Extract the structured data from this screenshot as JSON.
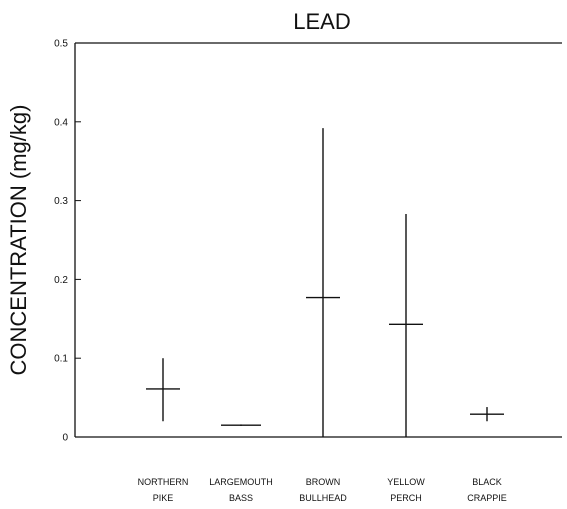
{
  "chart_data": {
    "type": "range",
    "title": "LEAD",
    "ylabel": "CONCENTRATION (mg/kg)",
    "xlabel": "",
    "ylim": [
      0,
      0.5
    ],
    "yticks": [
      0,
      0.1,
      0.2,
      0.3,
      0.4,
      0.5
    ],
    "ytick_labels": [
      "0",
      "0.1",
      "0.2",
      "0.3",
      "0.4",
      "0.5"
    ],
    "grid": false,
    "categories": [
      [
        "NORTHERN",
        "PIKE"
      ],
      [
        "LARGEMOUTH",
        "BASS"
      ],
      [
        "BROWN",
        "BULLHEAD"
      ],
      [
        "YELLOW",
        "PERCH"
      ],
      [
        "BLACK",
        "CRAPPIE"
      ]
    ],
    "series": [
      {
        "min": 0.02,
        "max": 0.1,
        "mean": 0.061
      },
      {
        "min": 0.014,
        "max": 0.016,
        "mean": 0.015
      },
      {
        "min": 0.0,
        "max": 0.392,
        "mean": 0.177
      },
      {
        "min": 0.0,
        "max": 0.283,
        "mean": 0.143
      },
      {
        "min": 0.02,
        "max": 0.038,
        "mean": 0.029
      }
    ]
  }
}
